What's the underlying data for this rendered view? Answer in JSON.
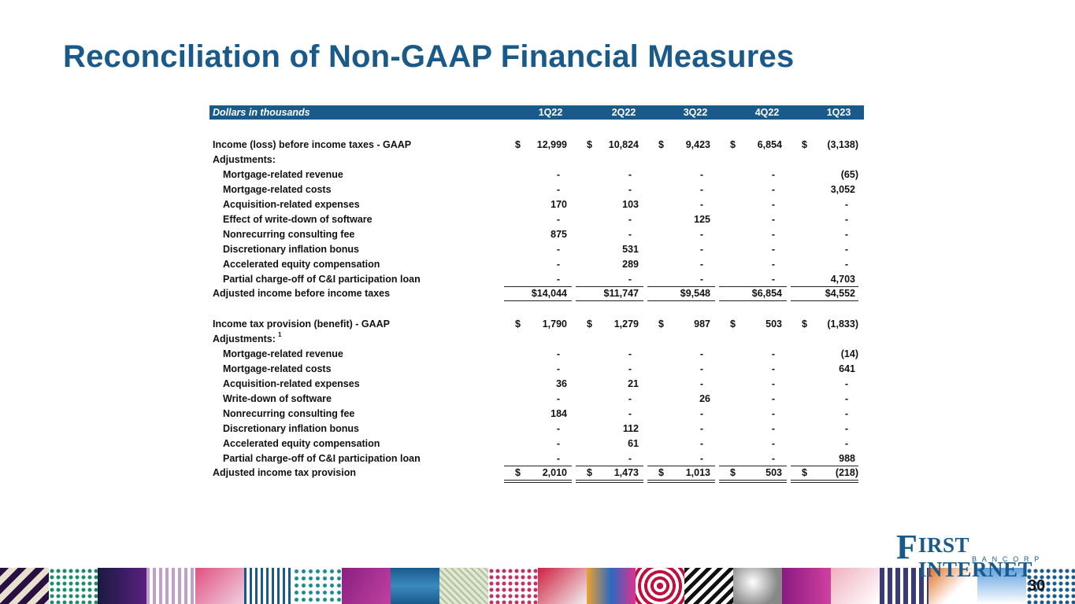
{
  "title": "Reconciliation of Non-GAAP Financial Measures",
  "table": {
    "unit_label": "Dollars in thousands",
    "periods": [
      "1Q22",
      "2Q22",
      "3Q22",
      "4Q22",
      "1Q23"
    ],
    "rows": [
      {
        "label": "Income (loss) before income taxes - GAAP",
        "values": [
          "12,999",
          "10,824",
          "9,423",
          "6,854",
          "(3,138)"
        ],
        "dollar": true
      },
      {
        "label": "Adjustments:",
        "values": []
      },
      {
        "label": "Mortgage-related revenue",
        "indent": true,
        "values": [
          "-",
          "-",
          "-",
          "-",
          "(65)"
        ]
      },
      {
        "label": "Mortgage-related costs",
        "indent": true,
        "values": [
          "-",
          "-",
          "-",
          "-",
          "3,052"
        ]
      },
      {
        "label": "Acquisition-related expenses",
        "indent": true,
        "values": [
          "170",
          "103",
          "-",
          "-",
          "-"
        ]
      },
      {
        "label": "Effect of write-down of software",
        "indent": true,
        "values": [
          "-",
          "-",
          "125",
          "-",
          "-"
        ]
      },
      {
        "label": "Nonrecurring consulting fee",
        "indent": true,
        "values": [
          "875",
          "-",
          "-",
          "-",
          "-"
        ]
      },
      {
        "label": "Discretionary inflation bonus",
        "indent": true,
        "values": [
          "-",
          "531",
          "-",
          "-",
          "-"
        ]
      },
      {
        "label": "Accelerated equity compensation",
        "indent": true,
        "values": [
          "-",
          "289",
          "-",
          "-",
          "-"
        ]
      },
      {
        "label": "Partial charge-off of C&I participation loan",
        "indent": true,
        "values": [
          "-",
          "-",
          "-",
          "-",
          "4,703"
        ],
        "underline": true
      },
      {
        "label": "Adjusted income before income taxes",
        "values": [
          "$14,044",
          "$11,747",
          "$9,548",
          "$6,854",
          "$4,552"
        ],
        "underline": true
      },
      {
        "label": "",
        "values": []
      },
      {
        "label": "Income tax provision (benefit) - GAAP",
        "values": [
          "1,790",
          "1,279",
          "987",
          "503",
          "(1,833)"
        ],
        "dollar": true
      },
      {
        "label": "Adjustments:",
        "sup": "1",
        "values": []
      },
      {
        "label": "Mortgage-related revenue",
        "indent": true,
        "values": [
          "-",
          "-",
          "-",
          "-",
          "(14)"
        ]
      },
      {
        "label": "Mortgage-related costs",
        "indent": true,
        "values": [
          "-",
          "-",
          "-",
          "-",
          "641"
        ]
      },
      {
        "label": "Acquisition-related expenses",
        "indent": true,
        "values": [
          "36",
          "21",
          "-",
          "-",
          "-"
        ]
      },
      {
        "label": "Write-down of software",
        "indent": true,
        "values": [
          "-",
          "-",
          "26",
          "-",
          "-"
        ]
      },
      {
        "label": "Nonrecurring consulting fee",
        "indent": true,
        "values": [
          "184",
          "-",
          "-",
          "-",
          "-"
        ]
      },
      {
        "label": "Discretionary inflation bonus",
        "indent": true,
        "values": [
          "-",
          "112",
          "-",
          "-",
          "-"
        ]
      },
      {
        "label": "Accelerated equity compensation",
        "indent": true,
        "values": [
          "-",
          "61",
          "-",
          "-",
          "-"
        ]
      },
      {
        "label": "Partial charge-off of C&I participation loan",
        "indent": true,
        "values": [
          "-",
          "-",
          "-",
          "-",
          "988"
        ],
        "underline": true
      },
      {
        "label": "Adjusted income tax provision",
        "values": [
          "2,010",
          "1,473",
          "1,013",
          "503",
          "(218)"
        ],
        "dollar": true,
        "double_underline": true
      }
    ]
  },
  "currency_symbol": "$",
  "logo": {
    "initial": "F",
    "name": "IRST INTERNET",
    "subtitle": "BANCORP"
  },
  "page_number": "30",
  "colors": {
    "brand": "#1a5a8a"
  }
}
